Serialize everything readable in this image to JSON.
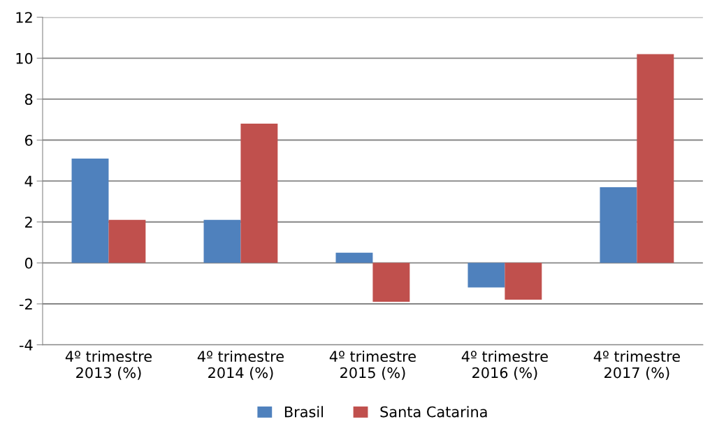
{
  "chart_data": {
    "type": "bar",
    "categories": [
      "4º trimestre\n2013 (%)",
      "4º trimestre\n2014 (%)",
      "4º trimestre\n2015 (%)",
      "4º trimestre\n2016 (%)",
      "4º trimestre\n2017 (%)"
    ],
    "series": [
      {
        "name": "Brasil",
        "color": "#4f81bd",
        "values": [
          5.1,
          2.1,
          0.5,
          -1.2,
          3.7
        ]
      },
      {
        "name": "Santa Catarina",
        "color": "#c0504d",
        "values": [
          2.1,
          6.8,
          -1.9,
          -1.8,
          10.2
        ]
      }
    ],
    "ylim": [
      -4,
      12
    ],
    "yticks": [
      -4,
      -2,
      0,
      2,
      4,
      6,
      8,
      10,
      12
    ],
    "grid": "y",
    "legend": "bottom"
  }
}
